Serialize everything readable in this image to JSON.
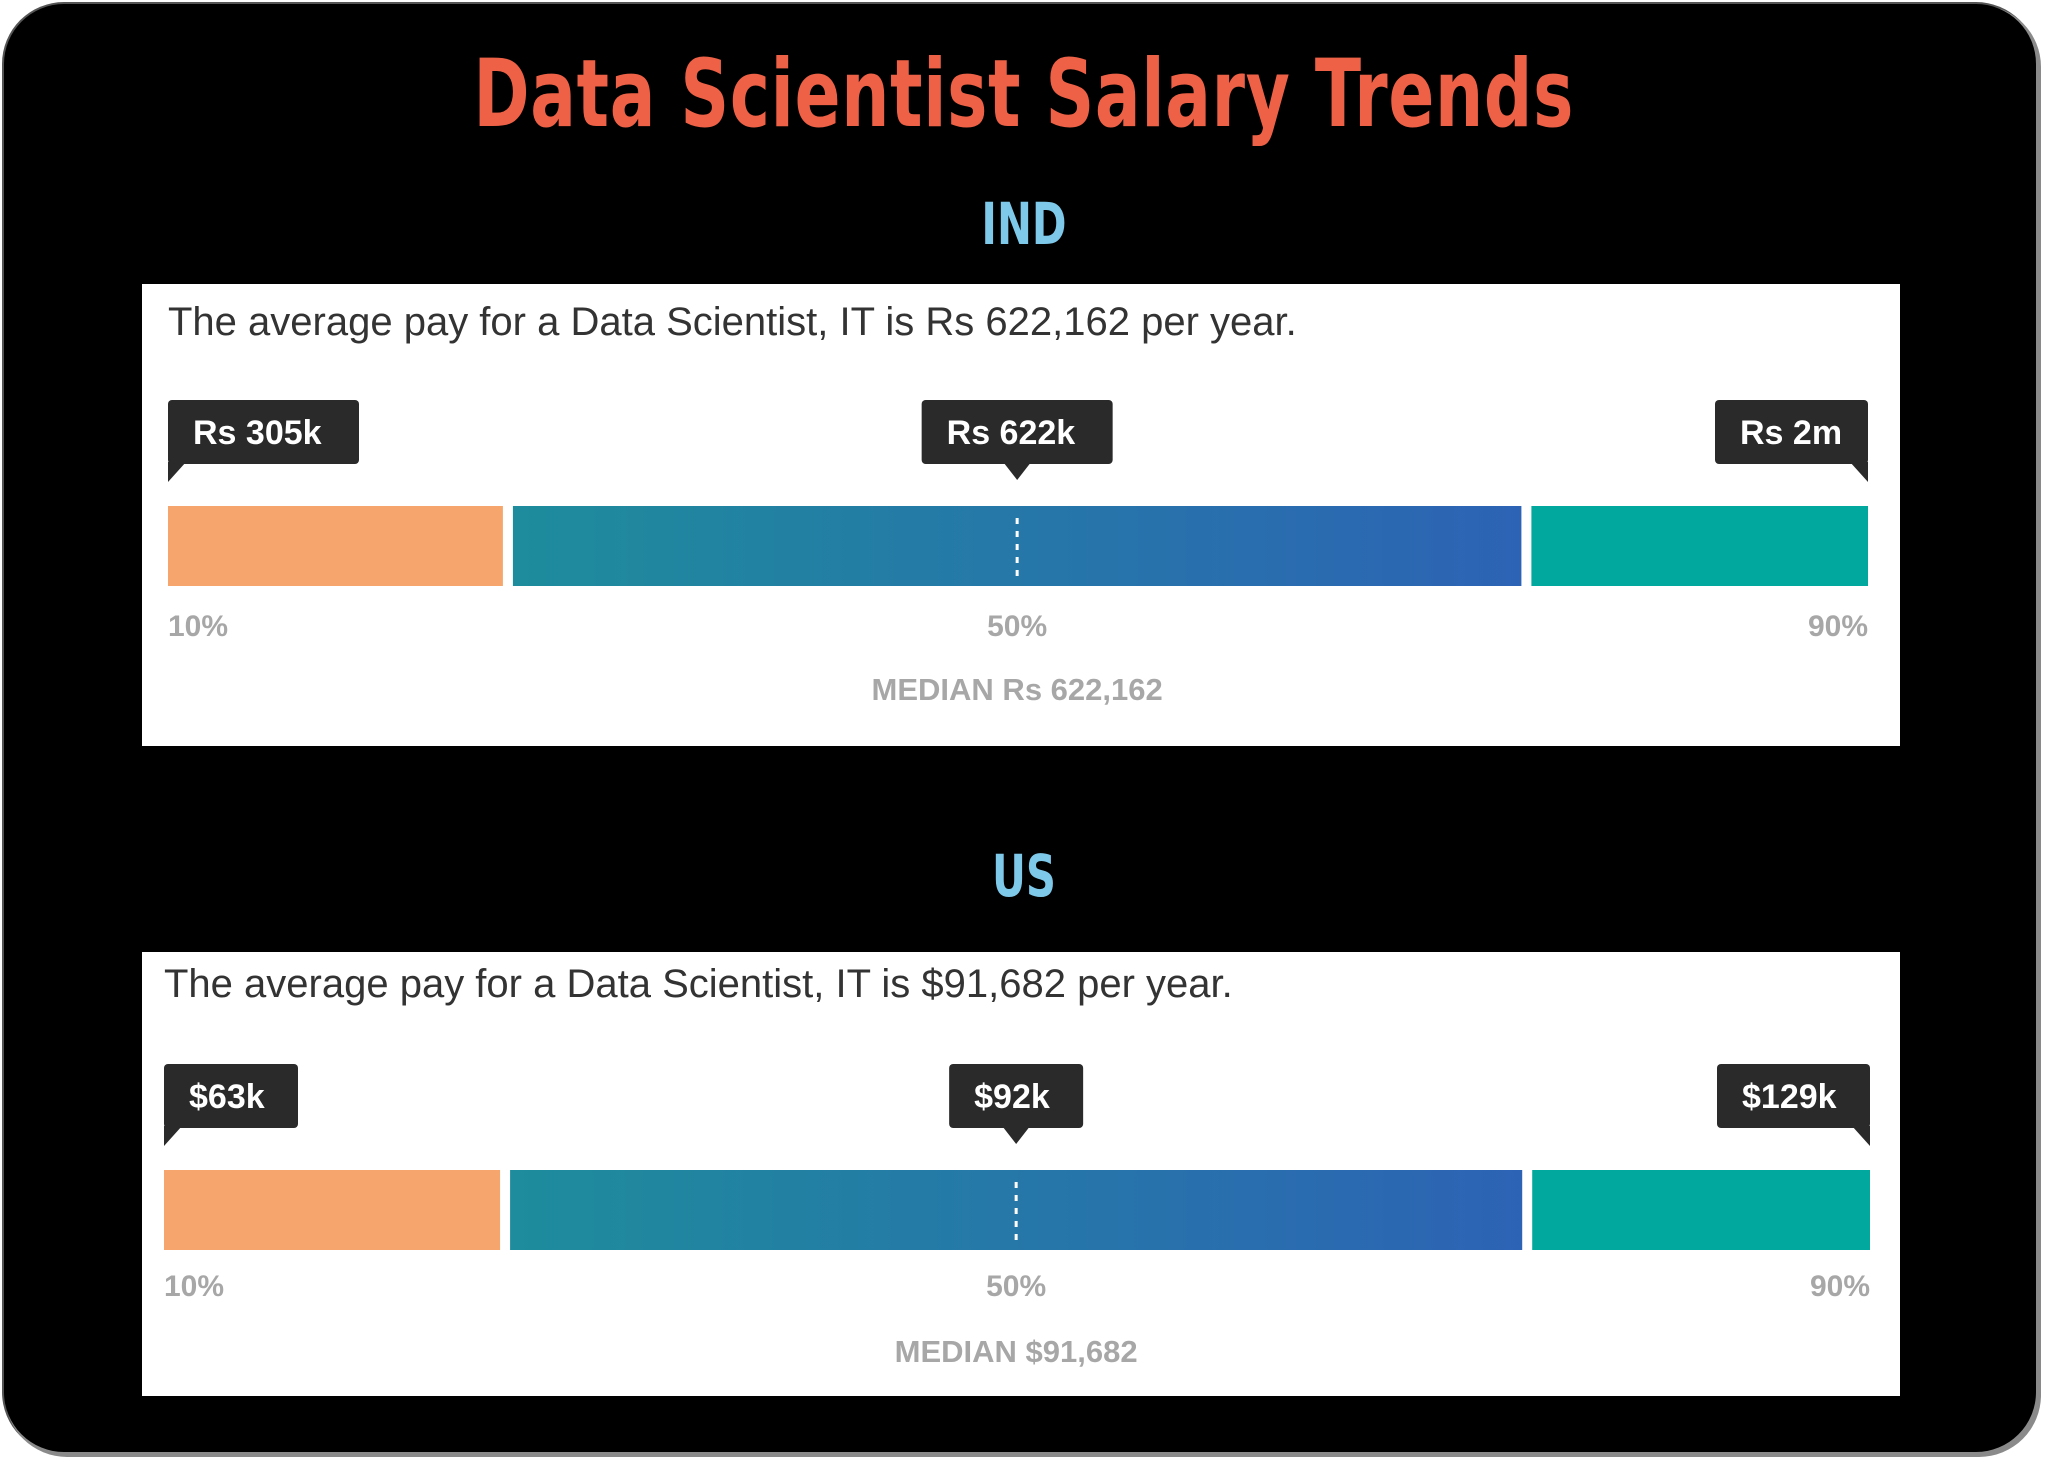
{
  "title": "Data Scientist Salary Trends",
  "colors": {
    "title": "#ee6146",
    "country": "#7ec9ea",
    "low_segment": "#f6a66d",
    "mid_segment_start": "#1e8c9c",
    "mid_segment_end": "#2d63b5",
    "high_segment": "#00a89d",
    "tooltip_bg": "#2a2a2a",
    "axis_text": "#a7a7a7"
  },
  "panels": [
    {
      "country": "IND",
      "summary": "The average pay for a Data Scientist, IT is Rs 622,162 per year.",
      "median_label": "MEDIAN Rs 622,162"
    },
    {
      "country": "US",
      "summary": "The average pay for a Data Scientist, IT is $91,682 per year.",
      "median_label": "MEDIAN $91,682"
    }
  ],
  "chart_data": [
    {
      "type": "bar",
      "title": "IND",
      "categories": [
        "10%",
        "50%",
        "90%"
      ],
      "values_text": [
        "Rs 305k",
        "Rs 622k",
        "Rs 2m"
      ],
      "values": [
        305000,
        622000,
        2000000
      ],
      "median": 622162,
      "currency": "Rs"
    },
    {
      "type": "bar",
      "title": "US",
      "categories": [
        "10%",
        "50%",
        "90%"
      ],
      "values_text": [
        "$63k",
        "$92k",
        "$129k"
      ],
      "values": [
        63000,
        92000,
        129000
      ],
      "median": 91682,
      "currency": "$"
    }
  ]
}
